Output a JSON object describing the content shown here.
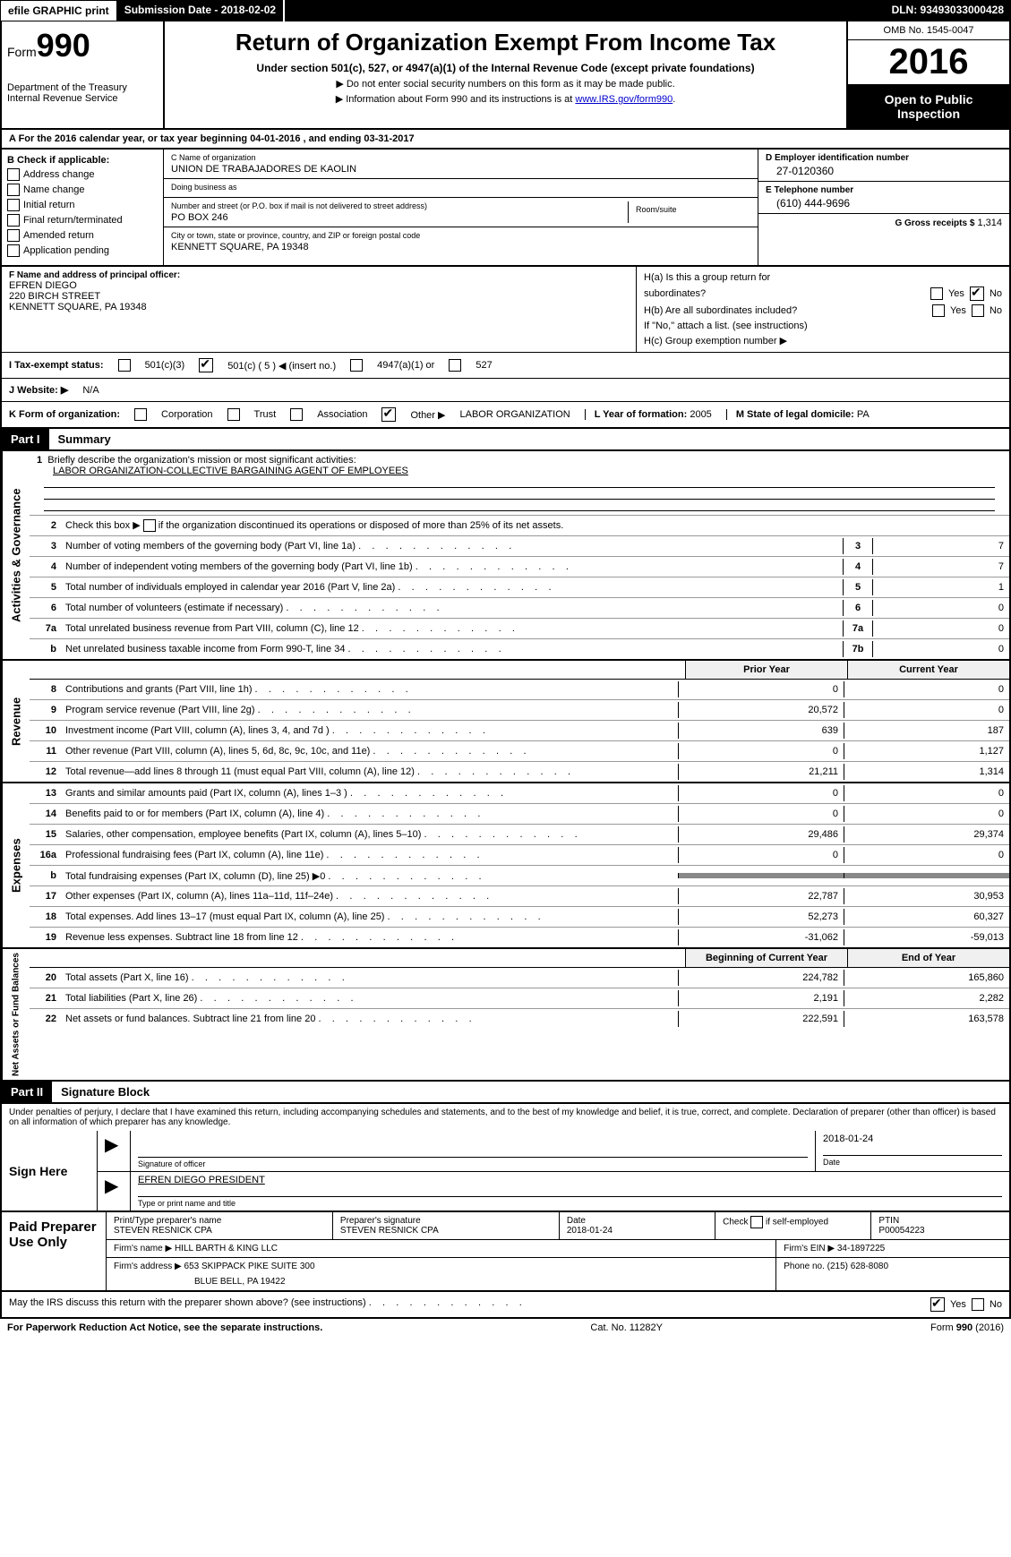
{
  "topbar": {
    "efile": "efile GRAPHIC print",
    "submission": "Submission Date - 2018-02-02",
    "dln": "DLN: 93493033000428"
  },
  "header": {
    "form_prefix": "Form",
    "form_number": "990",
    "dept": "Department of the Treasury",
    "irs": "Internal Revenue Service",
    "title": "Return of Organization Exempt From Income Tax",
    "subtitle": "Under section 501(c), 527, or 4947(a)(1) of the Internal Revenue Code (except private foundations)",
    "note1": "▶ Do not enter social security numbers on this form as it may be made public.",
    "note2_pre": "▶ Information about Form 990 and its instructions is at ",
    "note2_link": "www.IRS.gov/form990",
    "note2_post": ".",
    "omb": "OMB No. 1545-0047",
    "year": "2016",
    "open": "Open to Public Inspection"
  },
  "row_a": "A   For the 2016 calendar year, or tax year beginning 04-01-2016        , and ending 03-31-2017",
  "section_b": {
    "label": "B Check if applicable:",
    "items": [
      "Address change",
      "Name change",
      "Initial return",
      "Final return/terminated",
      "Amended return",
      "Application pending"
    ]
  },
  "section_c": {
    "name_label": "C Name of organization",
    "name_val": "UNION DE TRABAJADORES DE KAOLIN",
    "dba_label": "Doing business as",
    "dba_val": "",
    "street_label": "Number and street (or P.O. box if mail is not delivered to street address)",
    "street_val": "PO BOX 246",
    "room_label": "Room/suite",
    "city_label": "City or town, state or province, country, and ZIP or foreign postal code",
    "city_val": "KENNETT SQUARE, PA   19348"
  },
  "section_d": {
    "ein_label": "D Employer identification number",
    "ein_val": "27-0120360",
    "tel_label": "E Telephone number",
    "tel_val": "(610) 444-9696",
    "gross_label": "G Gross receipts $",
    "gross_val": "1,314"
  },
  "section_f": {
    "label": "F Name and address of principal officer:",
    "line1": "EFREN DIEGO",
    "line2": "220 BIRCH STREET",
    "line3": "KENNETT SQUARE, PA  19348"
  },
  "section_h": {
    "ha": "H(a)   Is this a group return for",
    "ha2": "subordinates?",
    "hb": "H(b)   Are all subordinates included?",
    "hb_note": "If \"No,\" attach a list. (see instructions)",
    "hc": "H(c)   Group exemption number ▶",
    "yes": "Yes",
    "no": "No"
  },
  "tax_status": {
    "label": "I     Tax-exempt status:",
    "c3": "501(c)(3)",
    "c": "501(c) ( 5 ) ◀ (insert no.)",
    "a4947": "4947(a)(1) or",
    "s527": "527"
  },
  "website": {
    "label": "J   Website: ▶",
    "val": "N/A"
  },
  "korg": {
    "label": "K Form of organization:",
    "corp": "Corporation",
    "trust": "Trust",
    "assoc": "Association",
    "other": "Other ▶",
    "other_val": "LABOR ORGANIZATION",
    "year_label": "L Year of formation:",
    "year_val": "2005",
    "state_label": "M State of legal domicile:",
    "state_val": "PA"
  },
  "part1": {
    "header": "Part I",
    "title": "Summary"
  },
  "activities": {
    "vert": "Activities & Governance",
    "r1_label": "Briefly describe the organization's mission or most significant activities:",
    "r1_val": "LABOR ORGANIZATION-COLLECTIVE BARGAINING AGENT OF EMPLOYEES",
    "r2": "Check this box ▶         if the organization discontinued its operations or disposed of more than 25% of its net assets.",
    "r3": "Number of voting members of the governing body (Part VI, line 1a)",
    "r3_v": "7",
    "r4": "Number of independent voting members of the governing body (Part VI, line 1b)",
    "r4_v": "7",
    "r5": "Total number of individuals employed in calendar year 2016 (Part V, line 2a)",
    "r5_v": "1",
    "r6": "Total number of volunteers (estimate if necessary)",
    "r6_v": "0",
    "r7a": "Total unrelated business revenue from Part VIII, column (C), line 12",
    "r7a_v": "0",
    "r7b": "Net unrelated business taxable income from Form 990-T, line 34",
    "r7b_v": "0"
  },
  "revenue": {
    "vert": "Revenue",
    "h_prior": "Prior Year",
    "h_current": "Current Year",
    "rows": [
      {
        "n": "8",
        "t": "Contributions and grants (Part VIII, line 1h)",
        "p": "0",
        "c": "0"
      },
      {
        "n": "9",
        "t": "Program service revenue (Part VIII, line 2g)",
        "p": "20,572",
        "c": "0"
      },
      {
        "n": "10",
        "t": "Investment income (Part VIII, column (A), lines 3, 4, and 7d )",
        "p": "639",
        "c": "187"
      },
      {
        "n": "11",
        "t": "Other revenue (Part VIII, column (A), lines 5, 6d, 8c, 9c, 10c, and 11e)",
        "p": "0",
        "c": "1,127"
      },
      {
        "n": "12",
        "t": "Total revenue—add lines 8 through 11 (must equal Part VIII, column (A), line 12)",
        "p": "21,211",
        "c": "1,314"
      }
    ]
  },
  "expenses": {
    "vert": "Expenses",
    "rows": [
      {
        "n": "13",
        "t": "Grants and similar amounts paid (Part IX, column (A), lines 1–3 )",
        "p": "0",
        "c": "0"
      },
      {
        "n": "14",
        "t": "Benefits paid to or for members (Part IX, column (A), line 4)",
        "p": "0",
        "c": "0"
      },
      {
        "n": "15",
        "t": "Salaries, other compensation, employee benefits (Part IX, column (A), lines 5–10)",
        "p": "29,486",
        "c": "29,374"
      },
      {
        "n": "16a",
        "t": "Professional fundraising fees (Part IX, column (A), line 11e)",
        "p": "0",
        "c": "0"
      },
      {
        "n": "b",
        "t": "Total fundraising expenses (Part IX, column (D), line 25) ▶0",
        "p": "",
        "c": "",
        "shaded": true
      },
      {
        "n": "17",
        "t": "Other expenses (Part IX, column (A), lines 11a–11d, 11f–24e)",
        "p": "22,787",
        "c": "30,953"
      },
      {
        "n": "18",
        "t": "Total expenses. Add lines 13–17 (must equal Part IX, column (A), line 25)",
        "p": "52,273",
        "c": "60,327"
      },
      {
        "n": "19",
        "t": "Revenue less expenses. Subtract line 18 from line 12",
        "p": "-31,062",
        "c": "-59,013"
      }
    ]
  },
  "netassets": {
    "vert": "Net Assets or Fund Balances",
    "h_begin": "Beginning of Current Year",
    "h_end": "End of Year",
    "rows": [
      {
        "n": "20",
        "t": "Total assets (Part X, line 16)",
        "p": "224,782",
        "c": "165,860"
      },
      {
        "n": "21",
        "t": "Total liabilities (Part X, line 26)",
        "p": "2,191",
        "c": "2,282"
      },
      {
        "n": "22",
        "t": "Net assets or fund balances. Subtract line 21 from line 20",
        "p": "222,591",
        "c": "163,578"
      }
    ]
  },
  "part2": {
    "header": "Part II",
    "title": "Signature Block"
  },
  "perjury": "Under penalties of perjury, I declare that I have examined this return, including accompanying schedules and statements, and to the best of my knowledge and belief, it is true, correct, and complete. Declaration of preparer (other than officer) is based on all information of which preparer has any knowledge.",
  "sign": {
    "label": "Sign Here",
    "sig_label": "Signature of officer",
    "date_val": "2018-01-24",
    "date_label": "Date",
    "name_val": "EFREN DIEGO  PRESIDENT",
    "name_label": "Type or print name and title"
  },
  "preparer": {
    "label": "Paid Preparer Use Only",
    "print_label": "Print/Type preparer's name",
    "print_val": "STEVEN RESNICK CPA",
    "psig_label": "Preparer's signature",
    "psig_val": "STEVEN RESNICK CPA",
    "pdate_label": "Date",
    "pdate_val": "2018-01-24",
    "check_label": "Check         if self-employed",
    "ptin_label": "PTIN",
    "ptin_val": "P00054223",
    "firm_name_label": "Firm's name      ▶",
    "firm_name_val": "HILL BARTH & KING LLC",
    "firm_ein_label": "Firm's EIN ▶",
    "firm_ein_val": "34-1897225",
    "firm_addr_label": "Firm's address ▶",
    "firm_addr_val1": "653 SKIPPACK PIKE SUITE 300",
    "firm_addr_val2": "BLUE BELL, PA  19422",
    "phone_label": "Phone no.",
    "phone_val": "(215) 628-8080"
  },
  "discuss": {
    "text": "May the IRS discuss this return with the preparer shown above? (see instructions)",
    "yes": "Yes",
    "no": "No"
  },
  "footer": {
    "left": "For Paperwork Reduction Act Notice, see the separate instructions.",
    "center": "Cat. No. 11282Y",
    "right": "Form 990 (2016)"
  }
}
